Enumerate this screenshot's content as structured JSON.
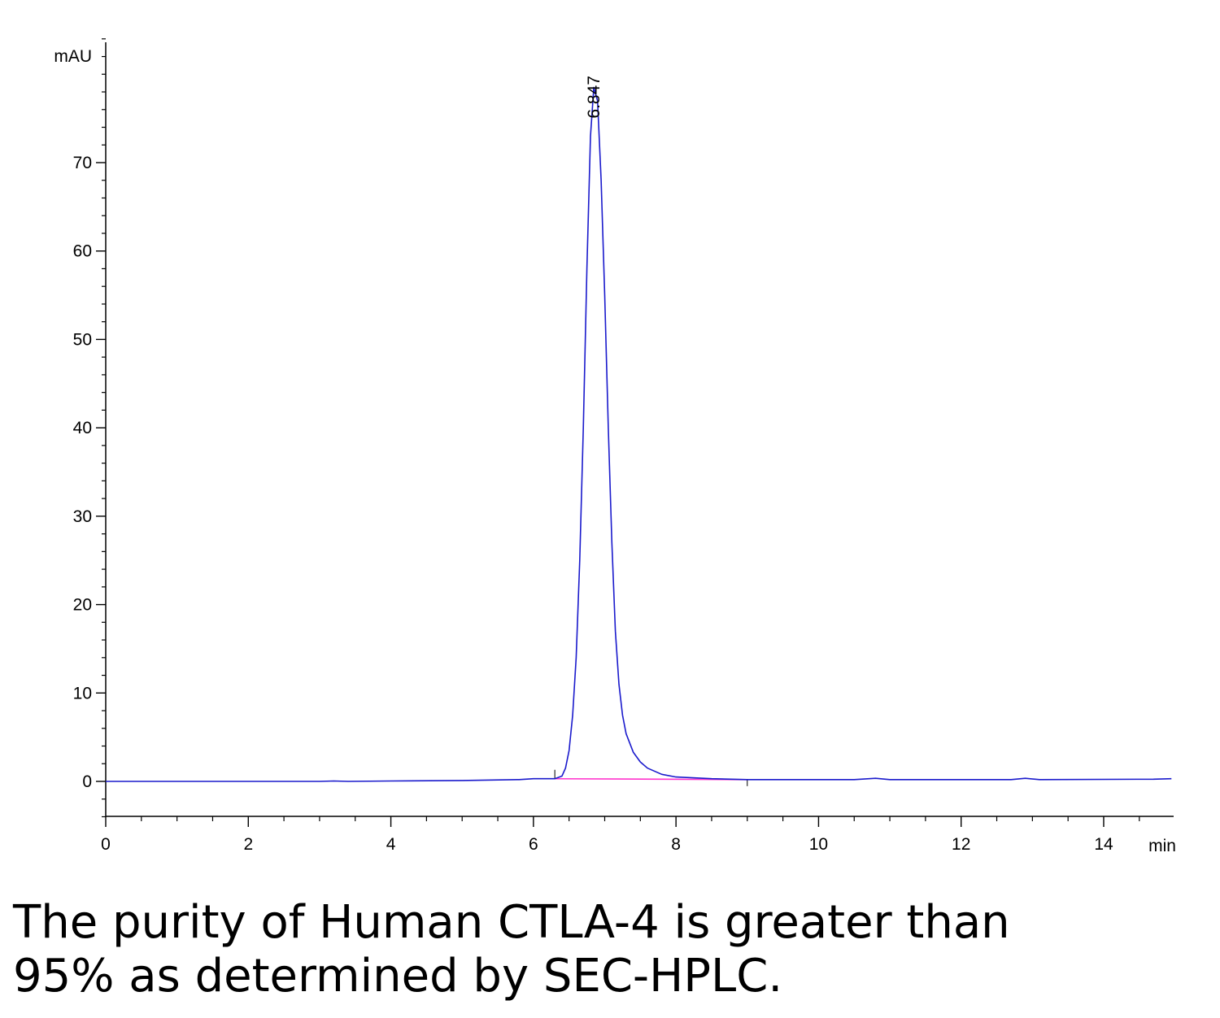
{
  "chart_data": {
    "type": "line",
    "ylabel": "mAU",
    "xlabel": "min",
    "xlim": [
      0,
      15
    ],
    "ylim": [
      -4,
      84
    ],
    "x_ticks": [
      0,
      2,
      4,
      6,
      8,
      10,
      12,
      14
    ],
    "y_ticks": [
      0,
      10,
      20,
      30,
      40,
      50,
      60,
      70
    ],
    "peak_label": "6.847",
    "series": [
      {
        "color": "#1a1acc",
        "points": [
          [
            0,
            0.0
          ],
          [
            3.0,
            0.0
          ],
          [
            3.2,
            0.05
          ],
          [
            3.4,
            0.0
          ],
          [
            4.0,
            0.05
          ],
          [
            5.0,
            0.1
          ],
          [
            5.8,
            0.2
          ],
          [
            6.0,
            0.3
          ],
          [
            6.2,
            0.3
          ],
          [
            6.3,
            0.3
          ],
          [
            6.4,
            0.6
          ],
          [
            6.45,
            1.5
          ],
          [
            6.5,
            3.5
          ],
          [
            6.55,
            7.5
          ],
          [
            6.6,
            14
          ],
          [
            6.65,
            25
          ],
          [
            6.7,
            40
          ],
          [
            6.75,
            58
          ],
          [
            6.8,
            73
          ],
          [
            6.847,
            78.5
          ],
          [
            6.9,
            77
          ],
          [
            6.95,
            68
          ],
          [
            7.0,
            55
          ],
          [
            7.05,
            40
          ],
          [
            7.1,
            27
          ],
          [
            7.15,
            17
          ],
          [
            7.2,
            11
          ],
          [
            7.25,
            7.5
          ],
          [
            7.3,
            5.4
          ],
          [
            7.4,
            3.3
          ],
          [
            7.5,
            2.2
          ],
          [
            7.6,
            1.5
          ],
          [
            7.8,
            0.8
          ],
          [
            8.0,
            0.5
          ],
          [
            8.5,
            0.3
          ],
          [
            9.0,
            0.2
          ],
          [
            10.5,
            0.2
          ],
          [
            10.8,
            0.35
          ],
          [
            11.0,
            0.2
          ],
          [
            12.7,
            0.2
          ],
          [
            12.9,
            0.35
          ],
          [
            13.1,
            0.2
          ],
          [
            14.7,
            0.25
          ],
          [
            14.95,
            0.3
          ]
        ]
      }
    ],
    "baseline": {
      "color": "#ff33cc",
      "x": [
        6.3,
        9.0
      ],
      "y": [
        0.3,
        0.2
      ]
    }
  },
  "caption": {
    "line1": "The purity of Human CTLA-4 is greater than",
    "line2": "95% as determined by SEC-HPLC."
  }
}
